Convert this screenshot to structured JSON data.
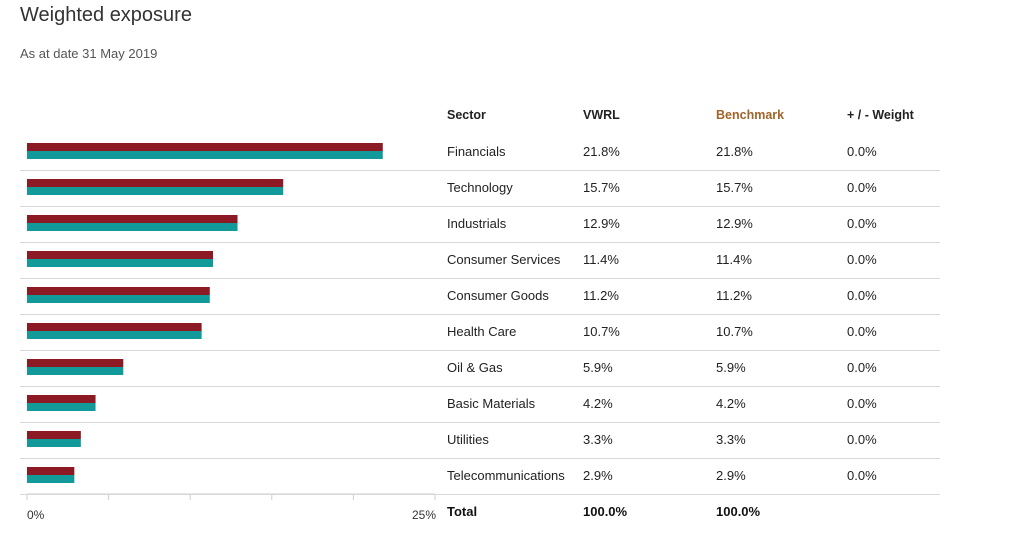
{
  "page": {
    "title": "Weighted exposure",
    "subtitle": "As at date 31 May 2019"
  },
  "table": {
    "headers": {
      "sector": "Sector",
      "fund": "VWRL",
      "benchmark": "Benchmark",
      "diff": "+ / - Weight"
    },
    "rows": [
      {
        "sector": "Financials",
        "fund": "21.8%",
        "benchmark": "21.8%",
        "diff": "0.0%"
      },
      {
        "sector": "Technology",
        "fund": "15.7%",
        "benchmark": "15.7%",
        "diff": "0.0%"
      },
      {
        "sector": "Industrials",
        "fund": "12.9%",
        "benchmark": "12.9%",
        "diff": "0.0%"
      },
      {
        "sector": "Consumer Services",
        "fund": "11.4%",
        "benchmark": "11.4%",
        "diff": "0.0%"
      },
      {
        "sector": "Consumer Goods",
        "fund": "11.2%",
        "benchmark": "11.2%",
        "diff": "0.0%"
      },
      {
        "sector": "Health Care",
        "fund": "10.7%",
        "benchmark": "10.7%",
        "diff": "0.0%"
      },
      {
        "sector": "Oil & Gas",
        "fund": "5.9%",
        "benchmark": "5.9%",
        "diff": "0.0%"
      },
      {
        "sector": "Basic Materials",
        "fund": "4.2%",
        "benchmark": "4.2%",
        "diff": "0.0%"
      },
      {
        "sector": "Utilities",
        "fund": "3.3%",
        "benchmark": "3.3%",
        "diff": "0.0%"
      },
      {
        "sector": "Telecommunications",
        "fund": "2.9%",
        "benchmark": "2.9%",
        "diff": "0.0%"
      }
    ],
    "total": {
      "label": "Total",
      "fund": "100.0%",
      "benchmark": "100.0%"
    }
  },
  "chart_data": {
    "type": "bar",
    "orientation": "horizontal",
    "categories": [
      "Financials",
      "Technology",
      "Industrials",
      "Consumer Services",
      "Consumer Goods",
      "Health Care",
      "Oil & Gas",
      "Basic Materials",
      "Utilities",
      "Telecommunications"
    ],
    "series": [
      {
        "name": "VWRL",
        "color": "#8b1a24",
        "values": [
          21.8,
          15.7,
          12.9,
          11.4,
          11.2,
          10.7,
          5.9,
          4.2,
          3.3,
          2.9
        ]
      },
      {
        "name": "Benchmark",
        "color": "#12999a",
        "values": [
          21.8,
          15.7,
          12.9,
          11.4,
          11.2,
          10.7,
          5.9,
          4.2,
          3.3,
          2.9
        ]
      }
    ],
    "xlim": [
      0,
      25
    ],
    "tick_labels": [
      "0%",
      "25%"
    ],
    "grid": false
  },
  "colors": {
    "fund": "#8b1a24",
    "benchmark": "#12999a",
    "benchmark_header": "#a0652a"
  }
}
